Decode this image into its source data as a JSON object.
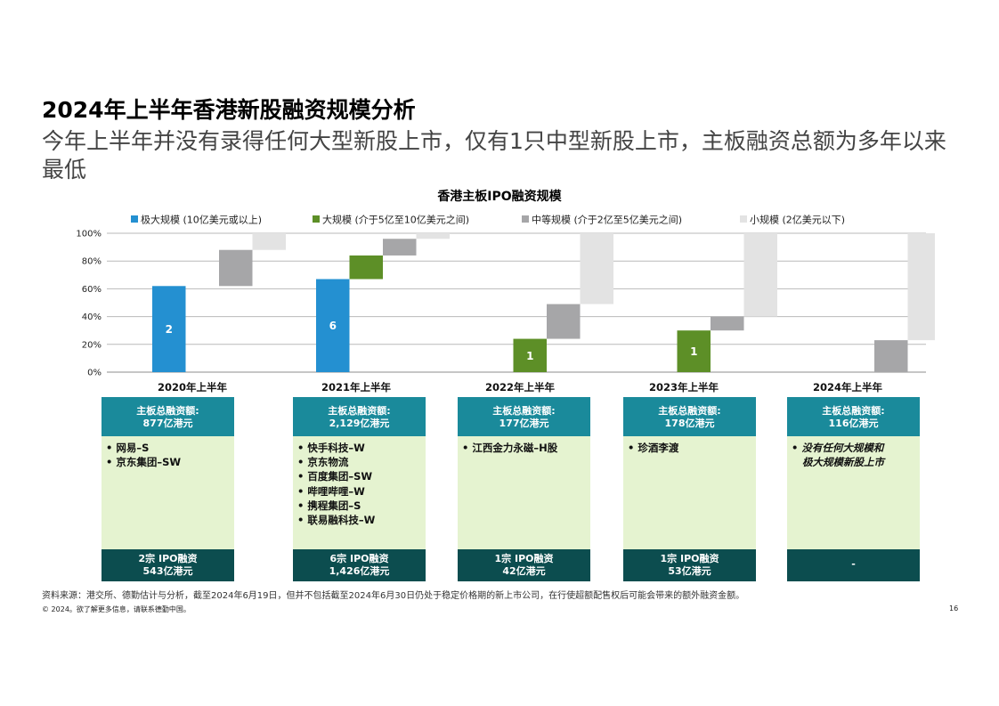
{
  "page": {
    "title": "2024年上半年香港新股融资规模分析",
    "subtitle": "今年上半年并没有录得任何大型新股上市，仅有1只中型新股上市，主板融资总额为多年以来最低",
    "source": "资料来源：港交所、德勤估计与分析，截至2024年6月19日，但并不包括截至2024年6月30日仍处于稳定价格期的新上市公司，在行使超额配售权后可能会带来的额外融资金额。",
    "copyright": "© 2024。欲了解更多信息，请联系德勤中国。",
    "page_number": "16"
  },
  "chart_data": {
    "type": "bar",
    "subtype": "stacked waterfall (100%)",
    "title": "香港主板IPO融资规模",
    "categories": [
      "2020年上半年",
      "2021年上半年",
      "2022年上半年",
      "2023年上半年",
      "2024年上半年"
    ],
    "y_ticks": [
      "0%",
      "20%",
      "40%",
      "60%",
      "80%",
      "100%"
    ],
    "ylim": [
      0,
      100
    ],
    "grid": true,
    "legend_position": "top",
    "series": [
      {
        "name": "极大规模 (10亿美元或以上)",
        "color": "#2490d1",
        "values": [
          62,
          67,
          0,
          0,
          0
        ],
        "labels": [
          "2",
          "6",
          "",
          "",
          ""
        ]
      },
      {
        "name": "大规模 (介于5亿至10亿美元之间)",
        "color": "#5d8f27",
        "values": [
          0,
          17,
          24,
          30,
          0
        ],
        "labels": [
          "",
          "",
          "1",
          "1",
          ""
        ]
      },
      {
        "name": "中等规模 (介于2亿至5亿美元之间)",
        "color": "#a6a6a8",
        "values": [
          26,
          12,
          25,
          10,
          23
        ],
        "labels": [
          "",
          "",
          "",
          "",
          ""
        ]
      },
      {
        "name": "小规模 (2亿美元以下)",
        "color": "#e3e3e3",
        "values": [
          12,
          4,
          51,
          60,
          77
        ],
        "labels": [
          "",
          "",
          "",
          "",
          ""
        ]
      }
    ]
  },
  "cards": [
    {
      "total_label": "主板总融资额:",
      "total_value": "877亿港元",
      "items": [
        "• 网易–S",
        "• 京东集团–SW"
      ],
      "italic": false,
      "footer_line1": "2宗 IPO融资",
      "footer_line2": "543亿港元"
    },
    {
      "total_label": "主板总融资额:",
      "total_value": "2,129亿港元",
      "items": [
        "• 快手科技–W",
        "• 京东物流",
        "• 百度集团–SW",
        "• 哔哩哔哩–W",
        "• 携程集团–S",
        "• 联易融科技–W"
      ],
      "italic": false,
      "footer_line1": "6宗 IPO融资",
      "footer_line2": "1,426亿港元"
    },
    {
      "total_label": "主板总融资额:",
      "total_value": "177亿港元",
      "items": [
        "• 江西金力永磁–H股"
      ],
      "italic": false,
      "footer_line1": "1宗 IPO融资",
      "footer_line2": "42亿港元"
    },
    {
      "total_label": "主板总融资额:",
      "total_value": "178亿港元",
      "items": [
        "• 珍酒李渡"
      ],
      "italic": false,
      "footer_line1": "1宗 IPO融资",
      "footer_line2": "53亿港元"
    },
    {
      "total_label": "主板总融资额:",
      "total_value": "116亿港元",
      "items": [
        "• 没有任何大规模和",
        "   极大规模新股上市"
      ],
      "italic": true,
      "footer_line1": "-",
      "footer_line2": ""
    }
  ]
}
